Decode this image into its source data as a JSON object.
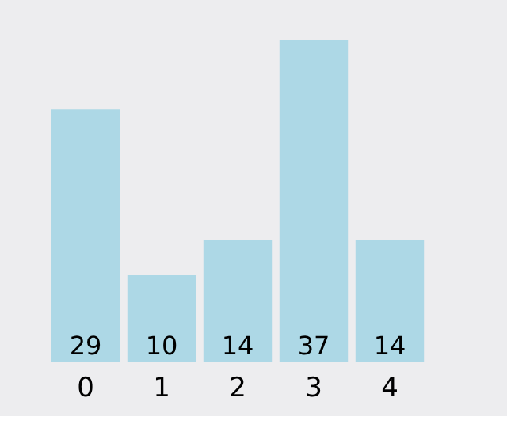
{
  "chart_data": {
    "type": "bar",
    "categories": [
      "0",
      "1",
      "2",
      "3",
      "4"
    ],
    "values": [
      29,
      10,
      14,
      37,
      14
    ],
    "color": "#add8e6",
    "data_labels": true
  }
}
